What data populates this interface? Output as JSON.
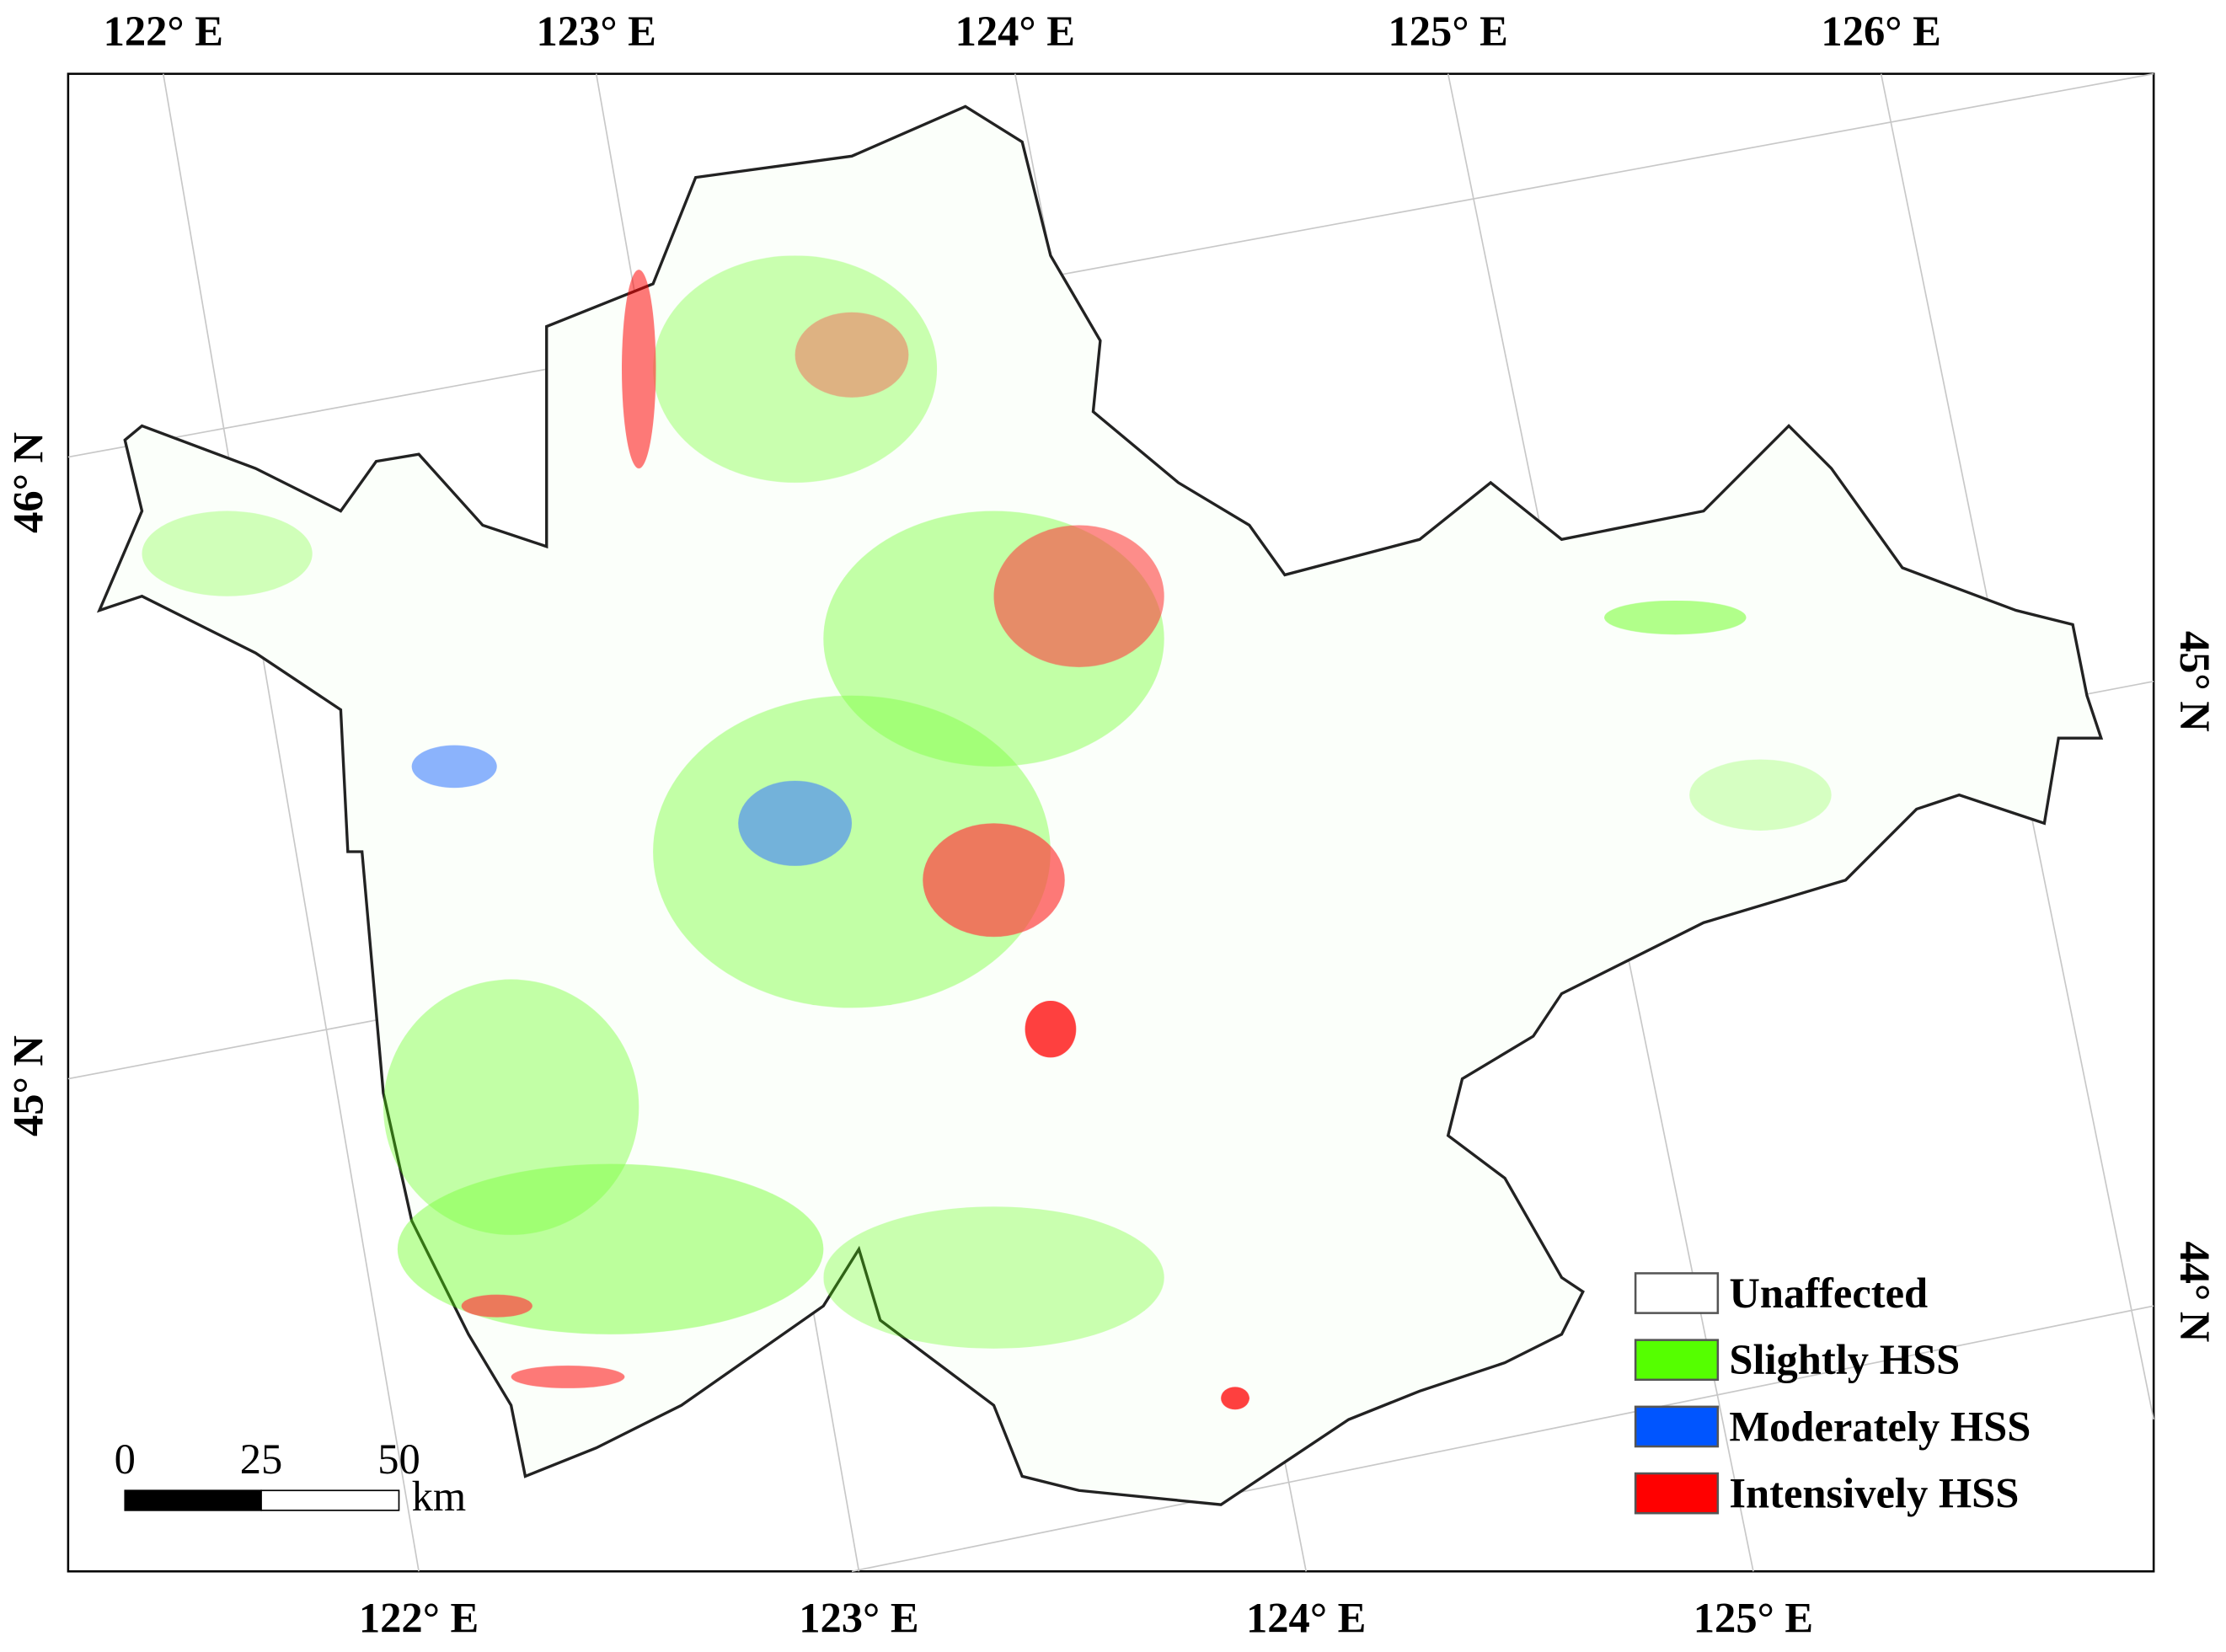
{
  "map": {
    "top_labels": [
      "122° E",
      "123° E",
      "124° E",
      "125° E",
      "126° E"
    ],
    "bottom_labels": [
      "122° E",
      "123° E",
      "124° E",
      "125° E"
    ],
    "left_labels": [
      "46° N",
      "45° N"
    ],
    "right_labels": [
      "45° N",
      "44° N"
    ],
    "legend": [
      {
        "label": "Unaffected",
        "color": "#ffffff"
      },
      {
        "label": "Slightly HSS",
        "color": "#55ff00"
      },
      {
        "label": "Moderately HSS",
        "color": "#0055ff"
      },
      {
        "label": "Intensively HSS",
        "color": "#ff0000"
      }
    ],
    "scale_bar": {
      "ticks": [
        0,
        25,
        50
      ],
      "unit": "km"
    }
  }
}
